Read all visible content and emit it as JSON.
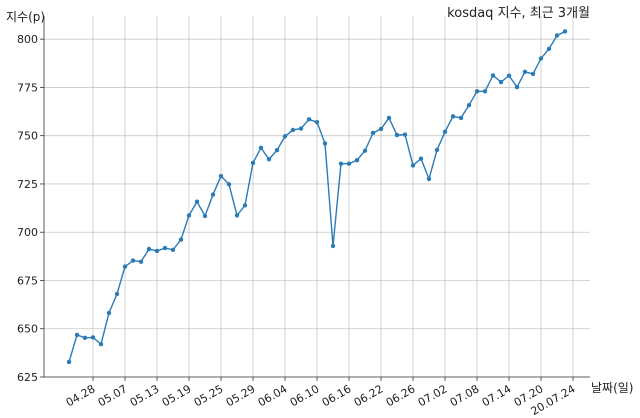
{
  "chart_data": {
    "type": "line",
    "title": "kosdaq 지수, 최근 3개월",
    "xlabel": "날짜(일)",
    "ylabel": "지수(p)",
    "ylim": [
      625,
      812
    ],
    "yticks": [
      625,
      650,
      675,
      700,
      725,
      750,
      775,
      800
    ],
    "grid": true,
    "line_color": "#2b7bb4",
    "xticks": [
      "04.28",
      "05.07",
      "05.13",
      "05.19",
      "05.25",
      "05.29",
      "06.04",
      "06.10",
      "06.16",
      "06.22",
      "06.26",
      "07.02",
      "07.08",
      "07.14",
      "07.20",
      "20.07.24"
    ],
    "xtick_index": [
      3,
      7,
      11,
      15,
      19,
      23,
      27,
      31,
      35,
      39,
      43,
      47,
      51,
      55,
      59,
      63
    ],
    "values": [
      632.8,
      646.8,
      645.3,
      645.5,
      642.0,
      658.2,
      668.0,
      682.2,
      685.3,
      684.7,
      691.3,
      690.3,
      691.8,
      690.9,
      696.2,
      708.7,
      715.8,
      708.4,
      719.5,
      729.1,
      724.8,
      708.7,
      713.9,
      735.9,
      743.7,
      737.8,
      742.5,
      749.7,
      753.0,
      753.7,
      758.5,
      757.0,
      746.0,
      692.9,
      735.5,
      735.5,
      737.3,
      742.2,
      751.4,
      753.5,
      759.2,
      750.3,
      750.6,
      734.6,
      738.1,
      727.6,
      742.6,
      752.0,
      760.0,
      759.2,
      765.8,
      773.0,
      773.0,
      781.2,
      777.8,
      781.1,
      775.2,
      783.1,
      782.0,
      790.0,
      795.0,
      801.9,
      804.0
    ]
  }
}
